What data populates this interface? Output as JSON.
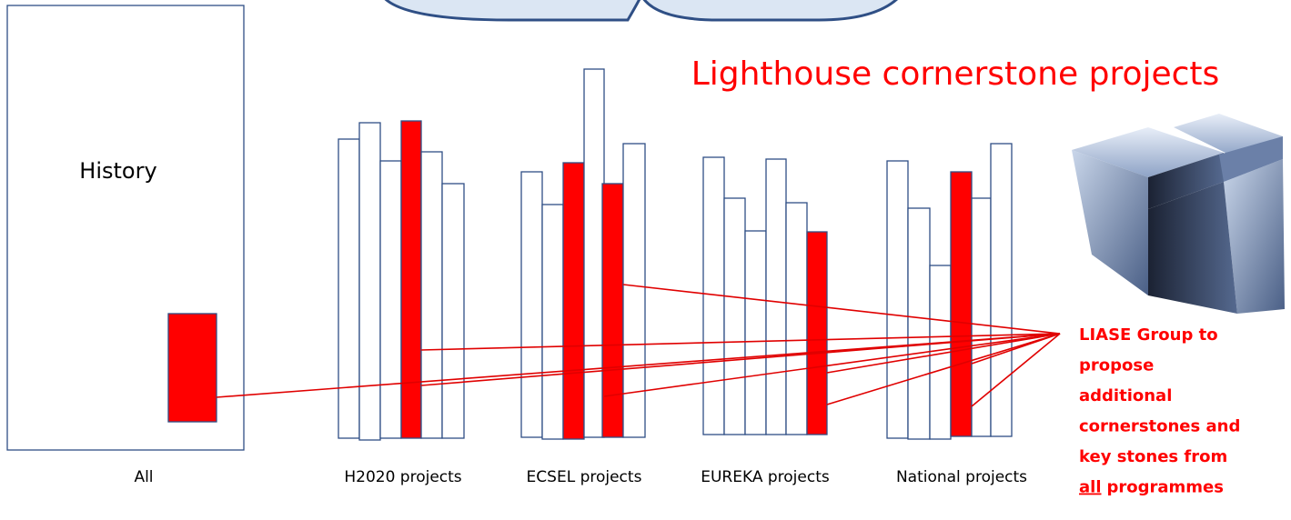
{
  "history_box": {
    "label": "History",
    "caption": "All"
  },
  "groups": [
    {
      "caption": "H2020 projects"
    },
    {
      "caption": "ECSEL projects"
    },
    {
      "caption": "EUREKA projects"
    },
    {
      "caption": "National projects"
    }
  ],
  "heading": "Lighthouse cornerstone projects",
  "note": {
    "lines": [
      "LIASE Group to",
      "propose",
      "additional",
      "cornerstones and",
      "key stones from"
    ],
    "last_line": {
      "underlined": "all",
      "rest": "programmes"
    }
  }
}
